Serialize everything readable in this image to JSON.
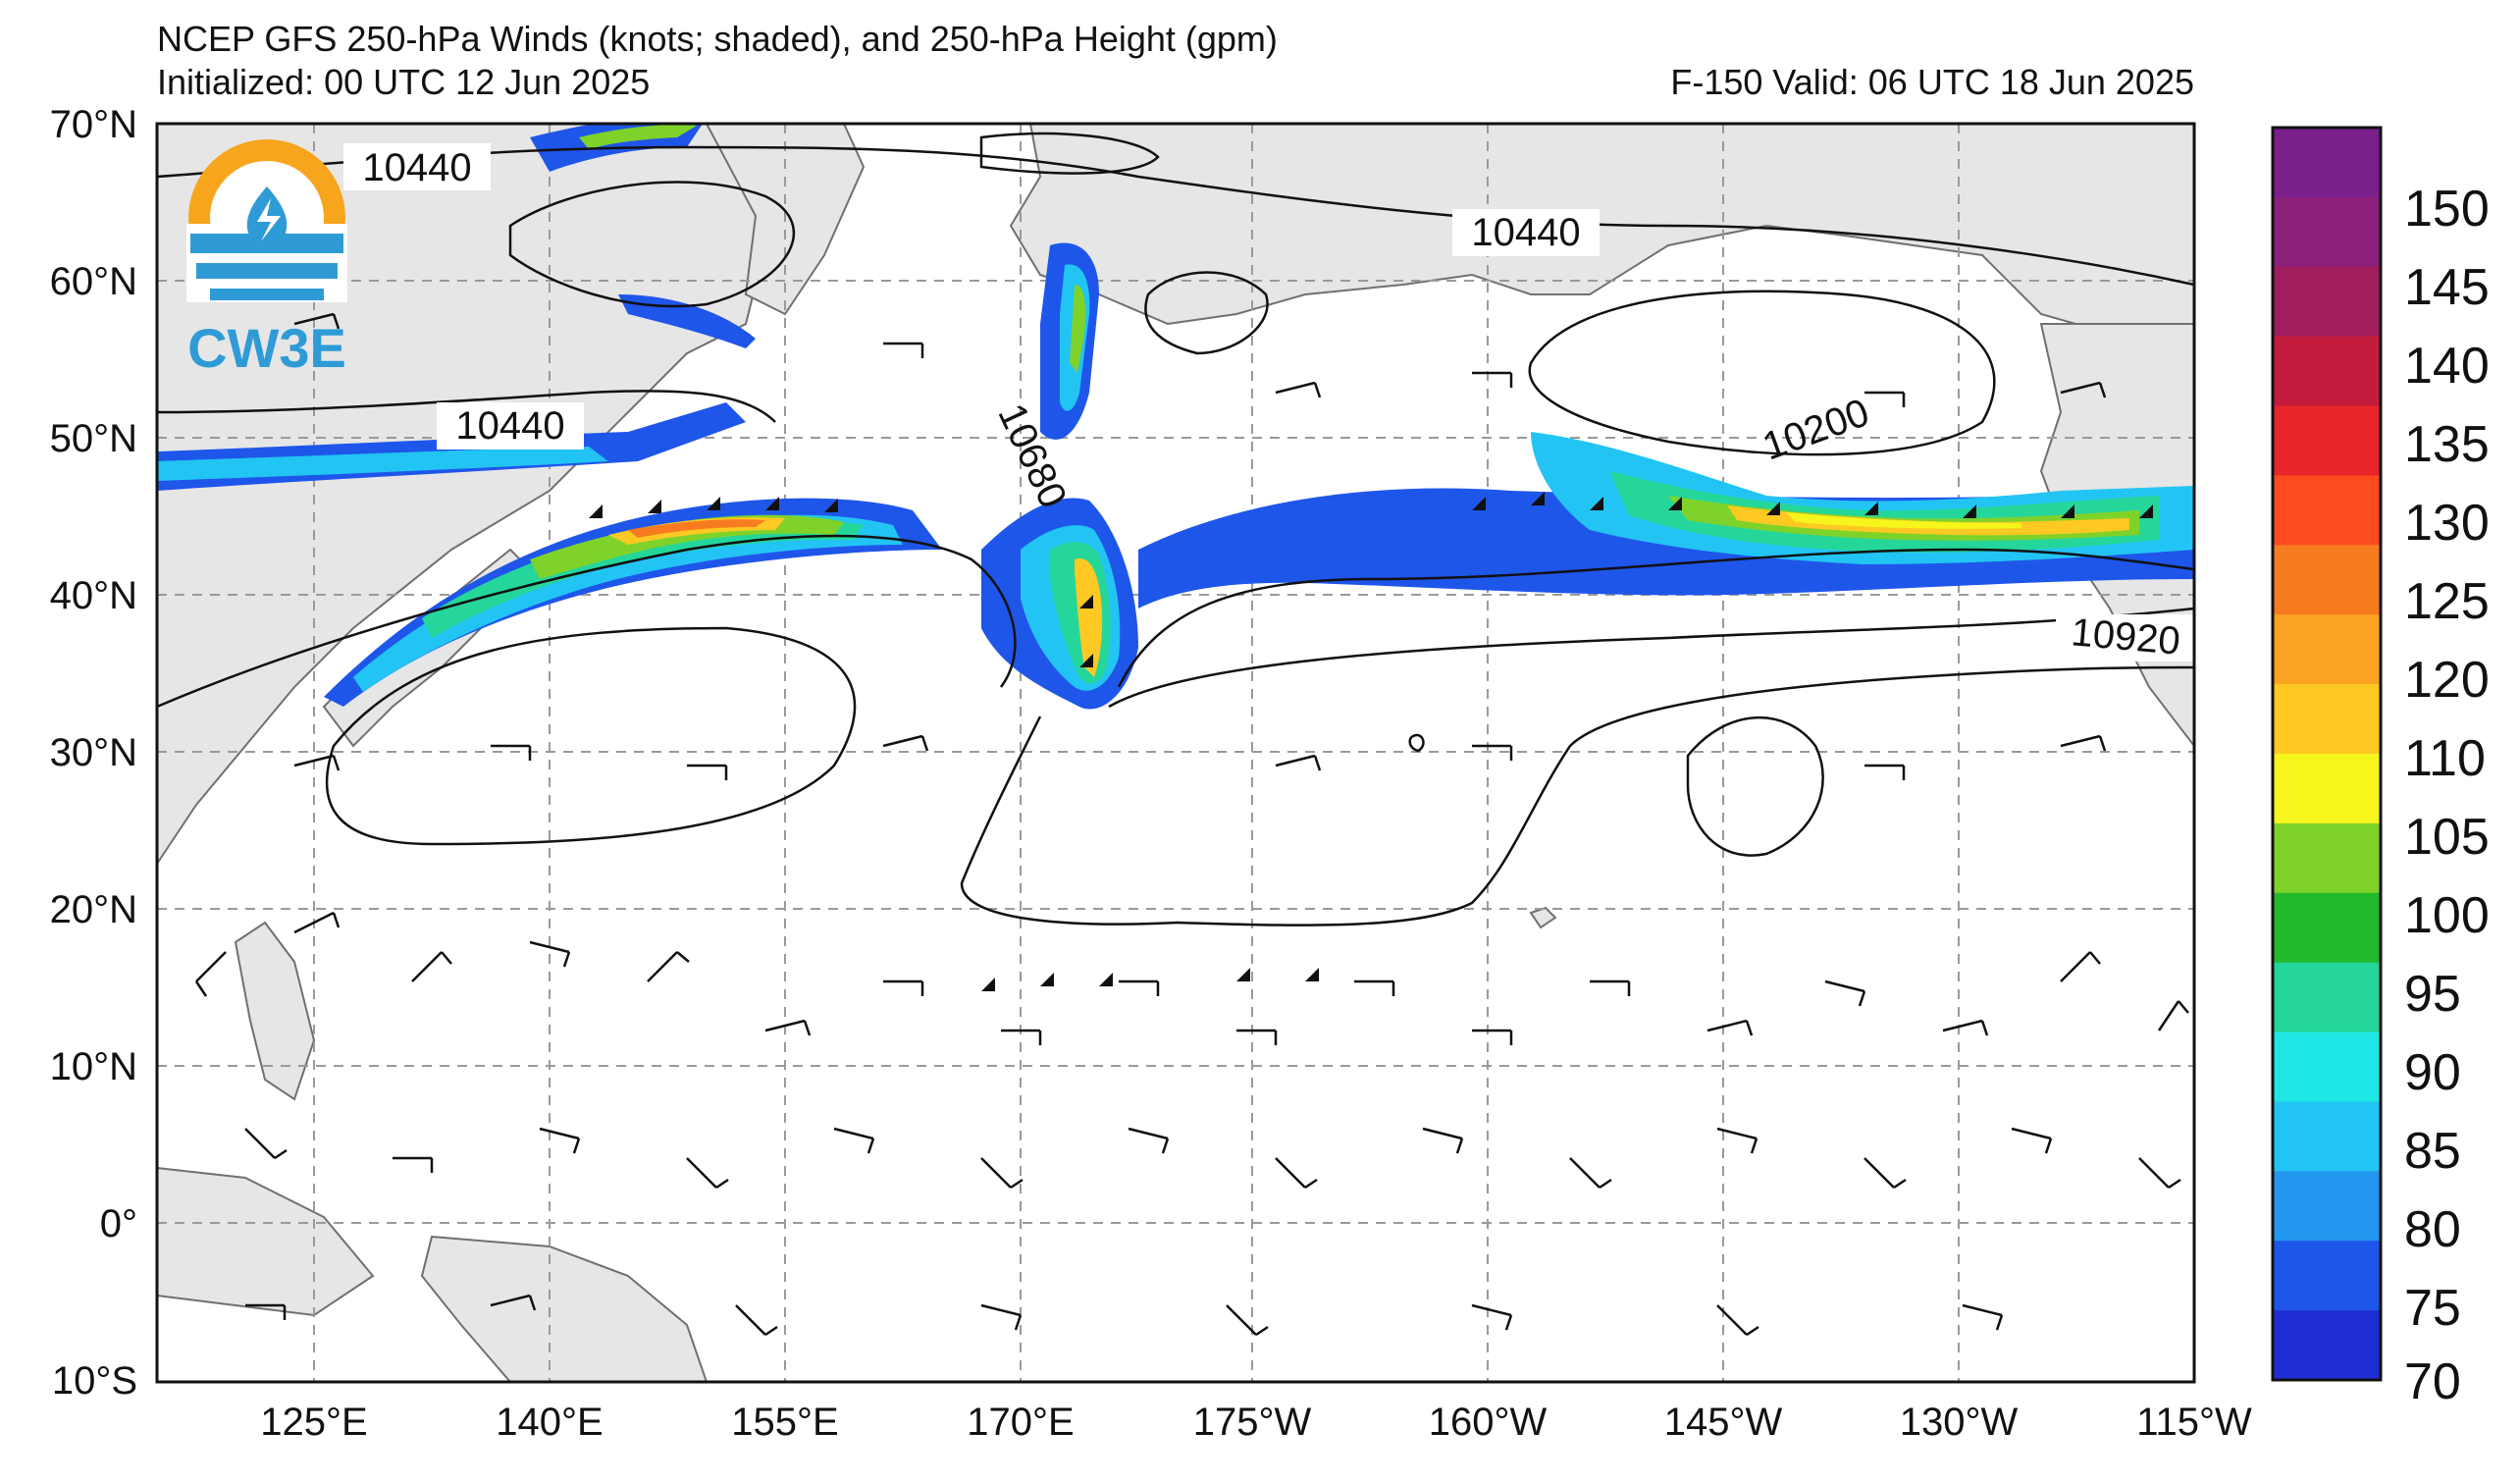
{
  "title": {
    "line1": "NCEP GFS 250-hPa Winds (knots; shaded), and 250-hPa Height (gpm)",
    "init": "Initialized: 00 UTC 12 Jun 2025",
    "valid": "F-150  Valid: 06 UTC 18 Jun 2025"
  },
  "logo": {
    "text": "CW3E",
    "icon": "cw3e-logo-icon"
  },
  "axes": {
    "lat_labels": [
      "70°N",
      "60°N",
      "50°N",
      "40°N",
      "30°N",
      "20°N",
      "10°N",
      "0°",
      "10°S"
    ],
    "lon_labels": [
      "125°E",
      "140°E",
      "155°E",
      "170°E",
      "175°W",
      "160°W",
      "145°W",
      "130°W",
      "115°W"
    ]
  },
  "contour_labels": [
    "10440",
    "10440",
    "10440",
    "10680",
    "10200",
    "10920"
  ],
  "colorbar": {
    "ticks": [
      "150",
      "145",
      "140",
      "135",
      "130",
      "125",
      "120",
      "110",
      "105",
      "100",
      "95",
      "90",
      "85",
      "80",
      "75",
      "70"
    ],
    "colors": [
      "#7a1f8c",
      "#8b1f7a",
      "#a01e5e",
      "#c41c3c",
      "#e8262a",
      "#fd4a1f",
      "#f77c20",
      "#fba423",
      "#fdc922",
      "#f6f51c",
      "#7fd22a",
      "#22b82b",
      "#25d69b",
      "#1fe7e5",
      "#22c4f3",
      "#2197f0",
      "#1f56ea",
      "#1e2ed4"
    ]
  }
}
